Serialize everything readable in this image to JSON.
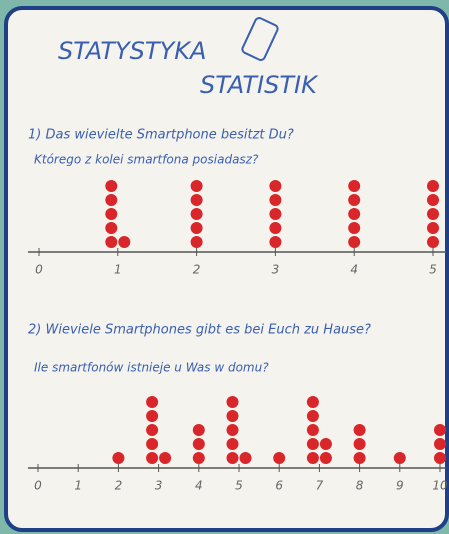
{
  "header": {
    "lines": [
      "STATYSTYKA",
      "STATISTIK"
    ]
  },
  "chart_data": [
    {
      "type": "dot",
      "title": "1) Das wievielte Smartphone besitzt Du?",
      "subtitle": "Którego z kolei smartfona posiadasz?",
      "x": [
        1,
        2,
        3,
        4,
        5
      ],
      "values": [
        6,
        5,
        5,
        5,
        5
      ],
      "color": "#d8262a",
      "xlim": [
        0,
        5
      ],
      "xticks": [
        0,
        1,
        2,
        3,
        4,
        5
      ]
    },
    {
      "type": "dot",
      "title": "2) Wieviele Smartphones gibt es bei Euch zu Hause?",
      "subtitle": "Ile smartfonów istnieje u Was w domu?",
      "x": [
        2,
        3,
        4,
        5,
        6,
        7,
        8,
        9,
        10
      ],
      "values": [
        1,
        6,
        3,
        6,
        1,
        7,
        3,
        1,
        3
      ],
      "color": "#d8262a",
      "xlim": [
        0,
        10
      ],
      "xticks": [
        0,
        1,
        2,
        3,
        4,
        5,
        6,
        7,
        8,
        9,
        10
      ]
    }
  ]
}
